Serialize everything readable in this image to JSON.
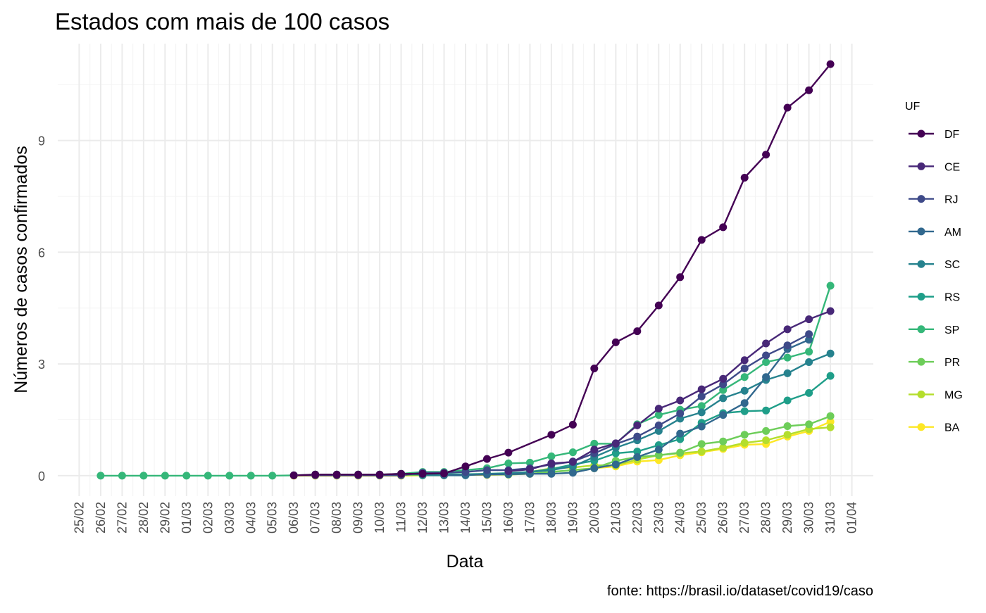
{
  "chart_data": {
    "type": "line",
    "title": "Estados com mais de 100 casos",
    "xlabel": "Data",
    "ylabel": "Números de casos confirmados",
    "caption": "fonte: https://brasil.io/dataset/covid19/caso",
    "legend_title": "UF",
    "legend_position": "right",
    "grid": true,
    "x_ticks": [
      "25/02",
      "26/02",
      "27/02",
      "28/02",
      "29/02",
      "01/03",
      "02/03",
      "03/03",
      "04/03",
      "05/03",
      "06/03",
      "07/03",
      "08/03",
      "09/03",
      "10/03",
      "11/03",
      "12/03",
      "13/03",
      "14/03",
      "15/03",
      "16/03",
      "17/03",
      "18/03",
      "19/03",
      "20/03",
      "21/03",
      "22/03",
      "23/03",
      "24/03",
      "25/03",
      "26/03",
      "27/03",
      "28/03",
      "29/03",
      "30/03",
      "31/03",
      "01/04"
    ],
    "xlim": [
      "24/02",
      "02/04"
    ],
    "y_ticks": [
      0,
      3,
      6,
      9
    ],
    "y_tick_labels": [
      "0",
      "3",
      "6",
      "9"
    ],
    "ylim": [
      -0.55,
      11.6
    ],
    "series": [
      {
        "name": "DF",
        "color": "#440154",
        "points": [
          [
            "06/03",
            0.01
          ],
          [
            "07/03",
            0.03
          ],
          [
            "08/03",
            0.03
          ],
          [
            "09/03",
            0.03
          ],
          [
            "10/03",
            0.03
          ],
          [
            "11/03",
            0.05
          ],
          [
            "12/03",
            0.05
          ],
          [
            "13/03",
            0.06
          ],
          [
            "14/03",
            0.25
          ],
          [
            "15/03",
            0.45
          ],
          [
            "16/03",
            0.62
          ],
          [
            "18/03",
            1.1
          ],
          [
            "19/03",
            1.37
          ],
          [
            "20/03",
            2.88
          ],
          [
            "21/03",
            3.58
          ],
          [
            "22/03",
            3.88
          ],
          [
            "23/03",
            4.57
          ],
          [
            "24/03",
            5.33
          ],
          [
            "25/03",
            6.33
          ],
          [
            "26/03",
            6.67
          ],
          [
            "27/03",
            8.0
          ],
          [
            "28/03",
            8.62
          ],
          [
            "29/03",
            9.88
          ],
          [
            "30/03",
            10.35
          ],
          [
            "31/03",
            11.05
          ]
        ]
      },
      {
        "name": "CE",
        "color": "#482878",
        "points": [
          [
            "16/03",
            0.12
          ],
          [
            "17/03",
            0.17
          ],
          [
            "18/03",
            0.33
          ],
          [
            "19/03",
            0.37
          ],
          [
            "20/03",
            0.7
          ],
          [
            "21/03",
            0.87
          ],
          [
            "22/03",
            1.35
          ],
          [
            "23/03",
            1.8
          ],
          [
            "24/03",
            2.02
          ],
          [
            "25/03",
            2.32
          ],
          [
            "26/03",
            2.6
          ],
          [
            "27/03",
            3.1
          ],
          [
            "28/03",
            3.55
          ],
          [
            "29/03",
            3.93
          ],
          [
            "30/03",
            4.2
          ],
          [
            "31/03",
            4.42
          ]
        ]
      },
      {
        "name": "RJ",
        "color": "#3E4A89",
        "points": [
          [
            "06/03",
            0.01
          ],
          [
            "07/03",
            0.01
          ],
          [
            "08/03",
            0.01
          ],
          [
            "09/03",
            0.01
          ],
          [
            "10/03",
            0.01
          ],
          [
            "11/03",
            0.01
          ],
          [
            "12/03",
            0.08
          ],
          [
            "13/03",
            0.08
          ],
          [
            "14/03",
            0.1
          ],
          [
            "15/03",
            0.15
          ],
          [
            "16/03",
            0.15
          ],
          [
            "17/03",
            0.2
          ],
          [
            "18/03",
            0.3
          ],
          [
            "19/03",
            0.38
          ],
          [
            "20/03",
            0.6
          ],
          [
            "21/03",
            0.85
          ],
          [
            "22/03",
            1.05
          ],
          [
            "23/03",
            1.35
          ],
          [
            "24/03",
            1.67
          ],
          [
            "25/03",
            2.13
          ],
          [
            "26/03",
            2.45
          ],
          [
            "27/03",
            2.88
          ],
          [
            "28/03",
            3.23
          ],
          [
            "29/03",
            3.5
          ],
          [
            "30/03",
            3.8
          ]
        ]
      },
      {
        "name": "AM",
        "color": "#31688E",
        "points": [
          [
            "13/03",
            0.02
          ],
          [
            "14/03",
            0.02
          ],
          [
            "15/03",
            0.03
          ],
          [
            "16/03",
            0.04
          ],
          [
            "17/03",
            0.05
          ],
          [
            "18/03",
            0.05
          ],
          [
            "19/03",
            0.08
          ],
          [
            "20/03",
            0.2
          ],
          [
            "21/03",
            0.3
          ],
          [
            "22/03",
            0.5
          ],
          [
            "23/03",
            0.7
          ],
          [
            "24/03",
            1.13
          ],
          [
            "25/03",
            1.32
          ],
          [
            "26/03",
            1.63
          ],
          [
            "27/03",
            1.95
          ],
          [
            "28/03",
            2.65
          ],
          [
            "29/03",
            3.4
          ],
          [
            "30/03",
            3.65
          ]
        ]
      },
      {
        "name": "SC",
        "color": "#26828E",
        "points": [
          [
            "12/03",
            0.01
          ],
          [
            "13/03",
            0.01
          ],
          [
            "14/03",
            0.01
          ],
          [
            "15/03",
            0.05
          ],
          [
            "16/03",
            0.05
          ],
          [
            "17/03",
            0.1
          ],
          [
            "18/03",
            0.15
          ],
          [
            "19/03",
            0.25
          ],
          [
            "20/03",
            0.5
          ],
          [
            "21/03",
            0.75
          ],
          [
            "22/03",
            0.95
          ],
          [
            "23/03",
            1.2
          ],
          [
            "24/03",
            1.53
          ],
          [
            "25/03",
            1.7
          ],
          [
            "26/03",
            2.08
          ],
          [
            "27/03",
            2.28
          ],
          [
            "28/03",
            2.57
          ],
          [
            "29/03",
            2.75
          ],
          [
            "30/03",
            3.05
          ],
          [
            "31/03",
            3.28
          ]
        ]
      },
      {
        "name": "RS",
        "color": "#1F9E89",
        "points": [
          [
            "10/03",
            0.01
          ],
          [
            "11/03",
            0.03
          ],
          [
            "12/03",
            0.03
          ],
          [
            "13/03",
            0.04
          ],
          [
            "14/03",
            0.04
          ],
          [
            "15/03",
            0.05
          ],
          [
            "16/03",
            0.07
          ],
          [
            "17/03",
            0.1
          ],
          [
            "18/03",
            0.18
          ],
          [
            "19/03",
            0.3
          ],
          [
            "20/03",
            0.4
          ],
          [
            "21/03",
            0.6
          ],
          [
            "22/03",
            0.65
          ],
          [
            "23/03",
            0.82
          ],
          [
            "24/03",
            0.98
          ],
          [
            "25/03",
            1.42
          ],
          [
            "26/03",
            1.68
          ],
          [
            "27/03",
            1.73
          ],
          [
            "28/03",
            1.75
          ],
          [
            "29/03",
            2.02
          ],
          [
            "30/03",
            2.22
          ],
          [
            "31/03",
            2.68
          ]
        ]
      },
      {
        "name": "SP",
        "color": "#35B779",
        "points": [
          [
            "26/02",
            0.0
          ],
          [
            "27/02",
            0.0
          ],
          [
            "28/02",
            0.0
          ],
          [
            "29/02",
            0.0
          ],
          [
            "01/03",
            0.0
          ],
          [
            "02/03",
            0.0
          ],
          [
            "03/03",
            0.0
          ],
          [
            "04/03",
            0.0
          ],
          [
            "05/03",
            0.0
          ],
          [
            "06/03",
            0.01
          ],
          [
            "07/03",
            0.03
          ],
          [
            "08/03",
            0.03
          ],
          [
            "09/03",
            0.03
          ],
          [
            "10/03",
            0.03
          ],
          [
            "11/03",
            0.05
          ],
          [
            "12/03",
            0.1
          ],
          [
            "13/03",
            0.1
          ],
          [
            "14/03",
            0.15
          ],
          [
            "15/03",
            0.2
          ],
          [
            "16/03",
            0.33
          ],
          [
            "17/03",
            0.35
          ],
          [
            "18/03",
            0.52
          ],
          [
            "19/03",
            0.63
          ],
          [
            "20/03",
            0.86
          ],
          [
            "21/03",
            0.86
          ],
          [
            "22/03",
            1.38
          ],
          [
            "23/03",
            1.63
          ],
          [
            "24/03",
            1.77
          ],
          [
            "25/03",
            1.87
          ],
          [
            "26/03",
            2.3
          ],
          [
            "27/03",
            2.65
          ],
          [
            "28/03",
            3.05
          ],
          [
            "29/03",
            3.17
          ],
          [
            "30/03",
            3.33
          ],
          [
            "31/03",
            5.1
          ]
        ]
      },
      {
        "name": "PR",
        "color": "#6DCD59",
        "points": [
          [
            "12/03",
            0.02
          ],
          [
            "13/03",
            0.03
          ],
          [
            "14/03",
            0.03
          ],
          [
            "15/03",
            0.03
          ],
          [
            "16/03",
            0.03
          ],
          [
            "17/03",
            0.05
          ],
          [
            "18/03",
            0.1
          ],
          [
            "19/03",
            0.15
          ],
          [
            "20/03",
            0.2
          ],
          [
            "21/03",
            0.4
          ],
          [
            "22/03",
            0.5
          ],
          [
            "23/03",
            0.55
          ],
          [
            "24/03",
            0.62
          ],
          [
            "25/03",
            0.85
          ],
          [
            "26/03",
            0.92
          ],
          [
            "27/03",
            1.1
          ],
          [
            "28/03",
            1.2
          ],
          [
            "29/03",
            1.33
          ],
          [
            "30/03",
            1.38
          ],
          [
            "31/03",
            1.6
          ]
        ]
      },
      {
        "name": "MG",
        "color": "#B4DE2C",
        "points": [
          [
            "08/03",
            0.01
          ],
          [
            "09/03",
            0.01
          ],
          [
            "10/03",
            0.01
          ],
          [
            "11/03",
            0.01
          ],
          [
            "12/03",
            0.02
          ],
          [
            "13/03",
            0.03
          ],
          [
            "14/03",
            0.03
          ],
          [
            "15/03",
            0.05
          ],
          [
            "16/03",
            0.05
          ],
          [
            "17/03",
            0.1
          ],
          [
            "18/03",
            0.2
          ],
          [
            "19/03",
            0.22
          ],
          [
            "20/03",
            0.28
          ],
          [
            "21/03",
            0.28
          ],
          [
            "22/03",
            0.43
          ],
          [
            "23/03",
            0.55
          ],
          [
            "24/03",
            0.6
          ],
          [
            "25/03",
            0.65
          ],
          [
            "26/03",
            0.75
          ],
          [
            "27/03",
            0.88
          ],
          [
            "28/03",
            0.95
          ],
          [
            "29/03",
            1.1
          ],
          [
            "30/03",
            1.25
          ],
          [
            "31/03",
            1.3
          ]
        ]
      },
      {
        "name": "BA",
        "color": "#FDE725",
        "points": [
          [
            "06/03",
            0.0
          ],
          [
            "07/03",
            0.0
          ],
          [
            "08/03",
            0.0
          ],
          [
            "09/03",
            0.0
          ],
          [
            "10/03",
            0.0
          ],
          [
            "11/03",
            0.0
          ],
          [
            "12/03",
            0.01
          ],
          [
            "13/03",
            0.01
          ],
          [
            "14/03",
            0.02
          ],
          [
            "15/03",
            0.02
          ],
          [
            "16/03",
            0.03
          ],
          [
            "17/03",
            0.05
          ],
          [
            "18/03",
            0.1
          ],
          [
            "19/03",
            0.15
          ],
          [
            "20/03",
            0.2
          ],
          [
            "21/03",
            0.25
          ],
          [
            "22/03",
            0.38
          ],
          [
            "23/03",
            0.42
          ],
          [
            "24/03",
            0.55
          ],
          [
            "25/03",
            0.63
          ],
          [
            "26/03",
            0.72
          ],
          [
            "27/03",
            0.83
          ],
          [
            "28/03",
            0.85
          ],
          [
            "29/03",
            1.05
          ],
          [
            "30/03",
            1.2
          ],
          [
            "31/03",
            1.45
          ]
        ]
      }
    ]
  }
}
